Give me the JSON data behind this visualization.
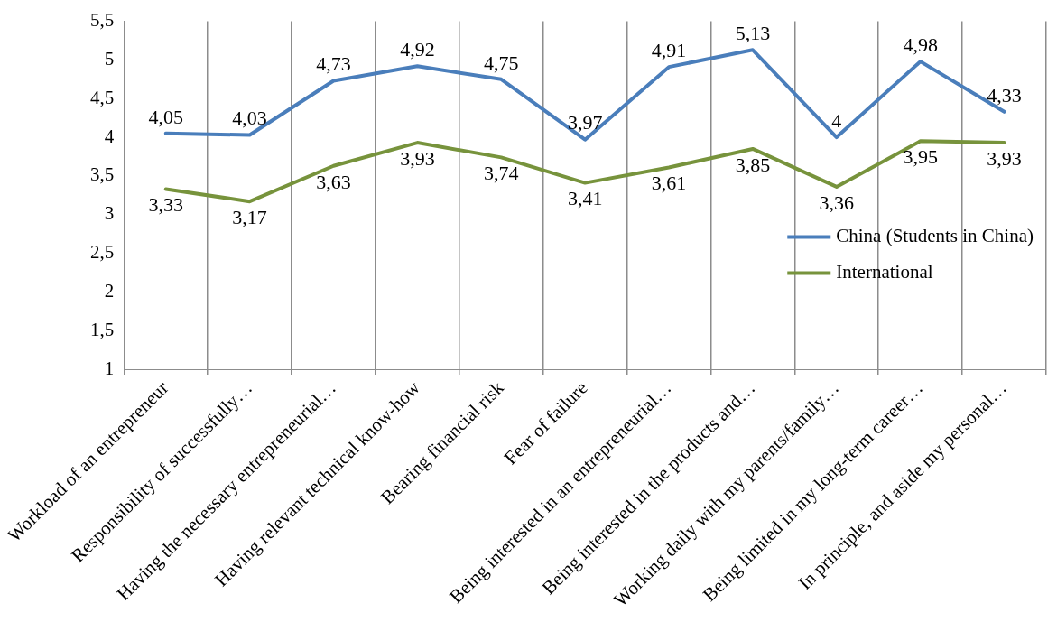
{
  "chart_data": {
    "type": "line",
    "categories": [
      "Workload of an entrepreneur",
      "Responsibility of successfully…",
      "Having the necessary entrepreneurial…",
      "Having relevant technical know-how",
      "Bearing financial risk",
      "Fear of failure",
      "Being interested in an entrepreneurial…",
      "Being interested in the products and…",
      "Working daily with my parents/family…",
      "Being limited in my long-term career…",
      "In principle, and aside my personal…"
    ],
    "series": [
      {
        "name": "China (Students in China)",
        "color": "#4a7ebb",
        "values": [
          4.05,
          4.03,
          4.73,
          4.92,
          4.75,
          3.97,
          4.91,
          5.13,
          4,
          4.98,
          4.33
        ],
        "value_labels": [
          "4,05",
          "4,03",
          "4,73",
          "4,92",
          "4,75",
          "3,97",
          "4,91",
          "5,13",
          "4",
          "4,98",
          "4,33"
        ]
      },
      {
        "name": "International",
        "color": "#77933c",
        "values": [
          3.33,
          3.17,
          3.63,
          3.93,
          3.74,
          3.41,
          3.61,
          3.85,
          3.36,
          3.95,
          3.93
        ],
        "value_labels": [
          "3,33",
          "3,17",
          "3,63",
          "3,93",
          "3,74",
          "3,41",
          "3,61",
          "3,85",
          "3,36",
          "3,95",
          "3,93"
        ]
      }
    ],
    "ylim": [
      1,
      5.5
    ],
    "yticks": [
      1,
      {
        "value": 1.5,
        "label": "1,5"
      },
      2,
      {
        "value": 2.5,
        "label": "2,5"
      },
      3,
      {
        "value": 3.5,
        "label": "3,5"
      },
      4,
      {
        "value": 4.5,
        "label": "4,5"
      },
      5,
      {
        "value": 5.5,
        "label": "5,5"
      }
    ],
    "grid": "x",
    "legend": "right",
    "marker": "none",
    "line_style": "solid"
  }
}
